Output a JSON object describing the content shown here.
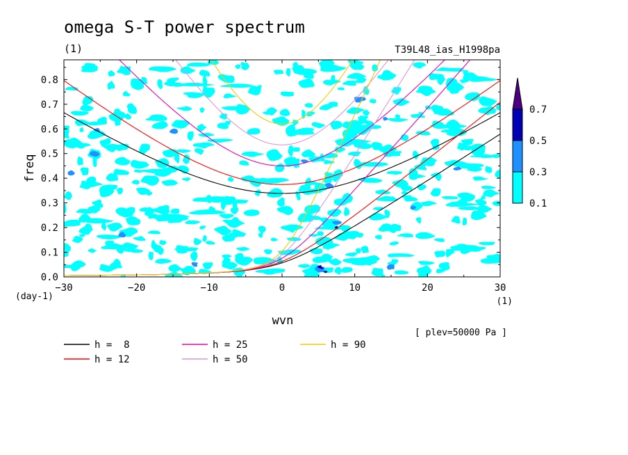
{
  "chart_data": {
    "type": "heatmap",
    "title": "omega S-T power spectrum",
    "subtitle_units": "(1)",
    "run_label": "T39L48_ias_H1998pa",
    "xlabel": "wvn",
    "ylabel": "freq",
    "x_unit": "(1)",
    "y_unit": "(day-1)",
    "xlim": [
      -30,
      30
    ],
    "ylim": [
      0,
      0.88
    ],
    "xticks": [
      -30,
      -20,
      -10,
      0,
      10,
      20,
      30
    ],
    "xtick_labels": [
      "−30",
      "−20",
      "−10",
      "0",
      "10",
      "20",
      "30"
    ],
    "yticks": [
      0.0,
      0.1,
      0.2,
      0.3,
      0.4,
      0.5,
      0.6,
      0.7,
      0.8
    ],
    "ytick_labels": [
      "0.0",
      "0.1",
      "0.2",
      "0.3",
      "0.4",
      "0.5",
      "0.6",
      "0.7",
      "0.8"
    ],
    "level_note": "[ plev=50000 Pa ]",
    "colorbar": {
      "levels": [
        0.1,
        0.3,
        0.5,
        0.7
      ],
      "labels": [
        "0.1",
        "0.3",
        "0.5",
        "0.7"
      ],
      "colors": [
        "#00ffff",
        "#1e90ff",
        "#0000b4",
        "#4b0082"
      ],
      "extend": "max"
    },
    "contour_levels_shaded": [
      {
        "min": 0.1,
        "max": 0.3,
        "color": "#00ffff"
      },
      {
        "min": 0.3,
        "max": 0.5,
        "color": "#1e90ff"
      },
      {
        "min": 0.5,
        "max": 0.7,
        "color": "#0000b4"
      }
    ],
    "dispersion_curves": [
      {
        "label": "h =  8",
        "h": 8,
        "color": "#000000",
        "branches": [
          "gravity_n1",
          "kelvin"
        ]
      },
      {
        "label": "h = 12",
        "h": 12,
        "color": "#ff0000",
        "branches": [
          "gravity_n1",
          "kelvin"
        ]
      },
      {
        "label": "h = 25",
        "h": 25,
        "color": "#e600b4",
        "branches": [
          "gravity_n1",
          "kelvin"
        ]
      },
      {
        "label": "h = 50",
        "h": 50,
        "color": "#dc96dc",
        "branches": [
          "gravity_n1",
          "kelvin"
        ]
      },
      {
        "label": "h = 90",
        "h": 90,
        "color": "#f5c800",
        "branches": [
          "gravity_n1",
          "kelvin"
        ]
      }
    ]
  }
}
